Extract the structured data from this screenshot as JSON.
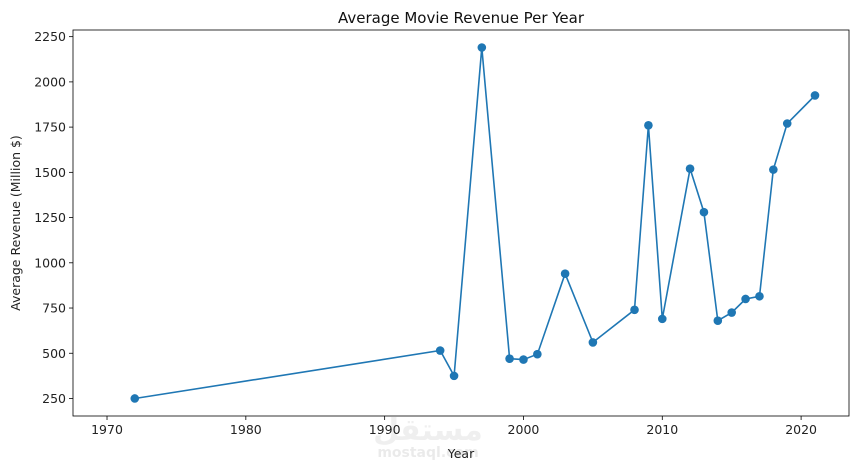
{
  "chart_data": {
    "type": "line",
    "title": "Average Movie Revenue Per Year",
    "xlabel": "Year",
    "ylabel": "Average Revenue (Million $)",
    "xlim": [
      1967.55,
      2023.45
    ],
    "ylim": [
      153.2,
      2286.8
    ],
    "xticks": [
      1970,
      1980,
      1990,
      2000,
      2010,
      2020
    ],
    "yticks": [
      250,
      500,
      750,
      1000,
      1250,
      1500,
      1750,
      2000,
      2250
    ],
    "grid": false,
    "series_color": "#1f77b4",
    "marker": "circle",
    "x": [
      1972,
      1994,
      1995,
      1997,
      1999,
      2000,
      2001,
      2003,
      2005,
      2008,
      2009,
      2010,
      2012,
      2013,
      2014,
      2015,
      2016,
      2017,
      2018,
      2019,
      2021
    ],
    "y": [
      250,
      515,
      375,
      2190,
      470,
      465,
      495,
      940,
      560,
      740,
      1760,
      690,
      1520,
      1280,
      680,
      725,
      800,
      815,
      1515,
      1770,
      1925
    ]
  },
  "watermark": {
    "arabic": "مستقل",
    "latin": "mostaql.com"
  }
}
